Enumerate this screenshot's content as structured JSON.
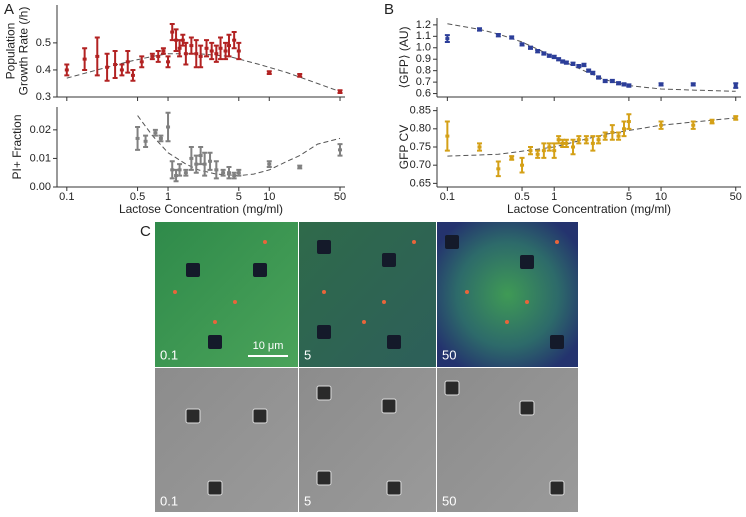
{
  "panel_labels": [
    "A",
    "B",
    "C"
  ],
  "chart_data": [
    {
      "type": "errorbar",
      "ylabel": [
        "Population",
        "Growth Rate (/h)"
      ],
      "xscale": "log",
      "show_xtick_labels": false,
      "xlim": [
        0.08,
        56
      ],
      "xticks": [
        0.1,
        0.5,
        1,
        5,
        10,
        50
      ],
      "ylim": [
        0.3,
        0.64
      ],
      "yticks": [
        0.3,
        0.4,
        0.5
      ],
      "color": "#b22222",
      "x": [
        0.1,
        0.15,
        0.2,
        0.25,
        0.3,
        0.35,
        0.4,
        0.45,
        0.55,
        0.7,
        0.8,
        0.9,
        1.0,
        1.1,
        1.2,
        1.3,
        1.4,
        1.5,
        1.7,
        1.9,
        2.1,
        2.4,
        2.7,
        3.0,
        3.3,
        3.7,
        4.0,
        4.5,
        5.0,
        10,
        20,
        50
      ],
      "values": [
        0.4,
        0.44,
        0.45,
        0.41,
        0.42,
        0.4,
        0.43,
        0.38,
        0.43,
        0.45,
        0.45,
        0.47,
        0.43,
        0.54,
        0.51,
        0.48,
        0.51,
        0.46,
        0.49,
        0.46,
        0.45,
        0.48,
        0.47,
        0.46,
        0.48,
        0.47,
        0.49,
        0.51,
        0.47,
        0.39,
        0.38,
        0.32
      ],
      "errors": [
        0.02,
        0.04,
        0.07,
        0.05,
        0.05,
        0.02,
        0.04,
        0.02,
        0.02,
        0.01,
        0.02,
        0.01,
        0.02,
        0.03,
        0.04,
        0.03,
        0.02,
        0.04,
        0.03,
        0.05,
        0.04,
        0.03,
        0.03,
        0.03,
        0.04,
        0.03,
        0.04,
        0.03,
        0.03,
        0.005,
        0.005,
        0.005
      ],
      "fit": {
        "x": [
          0.1,
          0.2,
          0.4,
          0.7,
          1,
          2,
          4,
          8,
          15,
          30,
          50
        ],
        "y": [
          0.37,
          0.4,
          0.43,
          0.45,
          0.46,
          0.46,
          0.45,
          0.42,
          0.39,
          0.35,
          0.32
        ]
      }
    },
    {
      "type": "errorbar",
      "ylabel": [
        "PI+ Fraction"
      ],
      "xscale": "log",
      "show_xtick_labels": true,
      "xlabel": "Lactose Concentration (mg/ml)",
      "xlim": [
        0.08,
        56
      ],
      "xticks": [
        0.1,
        0.5,
        1,
        5,
        10,
        50
      ],
      "ylim": [
        0,
        0.028
      ],
      "yticks": [
        {
          "value": 0,
          "label": "0.00"
        },
        {
          "value": 0.01,
          "label": "0.01"
        },
        {
          "value": 0.02,
          "label": "0.02"
        }
      ],
      "color": "#808080",
      "x": [
        0.5,
        0.6,
        0.75,
        0.85,
        1.0,
        1.1,
        1.2,
        1.3,
        1.5,
        1.7,
        1.9,
        2.1,
        2.3,
        2.6,
        3.0,
        3.5,
        4.0,
        4.5,
        5,
        10,
        20,
        50
      ],
      "values": [
        0.017,
        0.016,
        0.019,
        0.017,
        0.021,
        0.006,
        0.004,
        0.006,
        0.005,
        0.01,
        0.008,
        0.011,
        0.008,
        0.009,
        0.006,
        0.005,
        0.005,
        0.004,
        0.005,
        0.008,
        0.007,
        0.013
      ],
      "errors": [
        0.004,
        0.002,
        0.001,
        0.001,
        0.005,
        0.003,
        0.002,
        0.002,
        0.001,
        0.004,
        0.003,
        0.003,
        0.004,
        0.003,
        0.003,
        0.001,
        0.002,
        0.001,
        0.001,
        0.001,
        0.0005,
        0.002
      ],
      "fit": {
        "x": [
          0.5,
          0.7,
          1,
          1.5,
          2,
          3,
          5,
          7,
          10,
          15,
          20,
          30,
          50
        ],
        "y": [
          0.025,
          0.018,
          0.012,
          0.008,
          0.006,
          0.0045,
          0.004,
          0.0045,
          0.006,
          0.009,
          0.011,
          0.015,
          0.017
        ]
      }
    },
    {
      "type": "errorbar",
      "ylabel": [
        "⟨GFP⟩ (AU)"
      ],
      "xscale": "log",
      "show_xtick_labels": false,
      "xlim": [
        0.08,
        56
      ],
      "xticks": [
        0.1,
        0.5,
        1,
        5,
        10,
        50
      ],
      "ylim": [
        0.57,
        1.26
      ],
      "yticks": [
        0.6,
        0.7,
        0.8,
        0.9,
        {
          "value": 1.0,
          "label": "1.0"
        },
        1.1,
        1.2
      ],
      "color": "#2c3e99",
      "x": [
        0.1,
        0.2,
        0.3,
        0.4,
        0.5,
        0.6,
        0.7,
        0.8,
        0.9,
        1.0,
        1.1,
        1.2,
        1.3,
        1.5,
        1.7,
        1.9,
        2.1,
        2.3,
        2.6,
        3.0,
        3.5,
        4.0,
        4.5,
        5,
        10,
        20,
        50
      ],
      "values": [
        1.08,
        1.16,
        1.11,
        1.09,
        1.03,
        1.0,
        0.97,
        0.95,
        0.93,
        0.92,
        0.9,
        0.88,
        0.87,
        0.86,
        0.84,
        0.85,
        0.8,
        0.78,
        0.74,
        0.71,
        0.71,
        0.69,
        0.68,
        0.67,
        0.68,
        0.68,
        0.67
      ],
      "errors": [
        0.03,
        0.01,
        0.01,
        0.01,
        0.01,
        0.01,
        0.01,
        0.01,
        0.01,
        0.01,
        0.01,
        0.01,
        0.01,
        0.01,
        0.01,
        0.01,
        0.01,
        0.01,
        0.01,
        0.01,
        0.01,
        0.01,
        0.01,
        0.01,
        0.01,
        0.01,
        0.02
      ],
      "fit": {
        "x": [
          0.1,
          0.2,
          0.3,
          0.5,
          1,
          2,
          3,
          5,
          10,
          20,
          50
        ],
        "y": [
          1.21,
          1.16,
          1.12,
          1.05,
          0.92,
          0.79,
          0.72,
          0.67,
          0.64,
          0.63,
          0.62
        ]
      }
    },
    {
      "type": "errorbar",
      "ylabel": [
        "GFP CV"
      ],
      "xscale": "log",
      "show_xtick_labels": true,
      "xlabel": "Lactose Concentration (mg/ml)",
      "xlim": [
        0.08,
        56
      ],
      "xticks": [
        0.1,
        0.5,
        1,
        5,
        10,
        50
      ],
      "ylim": [
        0.64,
        0.86
      ],
      "yticks": [
        0.65,
        {
          "value": 0.7,
          "label": "0.70"
        },
        0.75,
        {
          "value": 0.8,
          "label": "0.80"
        },
        0.85
      ],
      "color": "#d4a017",
      "x": [
        0.1,
        0.2,
        0.3,
        0.4,
        0.5,
        0.6,
        0.7,
        0.8,
        0.9,
        1.0,
        1.1,
        1.2,
        1.3,
        1.5,
        1.7,
        2,
        2.3,
        2.6,
        3,
        3.5,
        4,
        4.5,
        5,
        10,
        20,
        30,
        50
      ],
      "values": [
        0.78,
        0.75,
        0.69,
        0.72,
        0.7,
        0.74,
        0.73,
        0.74,
        0.75,
        0.74,
        0.77,
        0.76,
        0.76,
        0.75,
        0.77,
        0.77,
        0.76,
        0.77,
        0.78,
        0.79,
        0.78,
        0.8,
        0.82,
        0.81,
        0.81,
        0.82,
        0.83
      ],
      "errors": [
        0.04,
        0.01,
        0.02,
        0.005,
        0.02,
        0.01,
        0.01,
        0.02,
        0.01,
        0.02,
        0.01,
        0.01,
        0.01,
        0.02,
        0.01,
        0.01,
        0.02,
        0.01,
        0.01,
        0.02,
        0.01,
        0.02,
        0.02,
        0.01,
        0.01,
        0.005,
        0.005
      ],
      "fit": {
        "x": [
          0.1,
          0.3,
          1,
          3,
          10,
          50
        ],
        "y": [
          0.725,
          0.73,
          0.75,
          0.785,
          0.81,
          0.83
        ]
      }
    }
  ],
  "micrographs": {
    "scale_bar": "10 μm",
    "labels": [
      "0.1",
      "5",
      "50",
      "0.1",
      "5",
      "50"
    ]
  }
}
